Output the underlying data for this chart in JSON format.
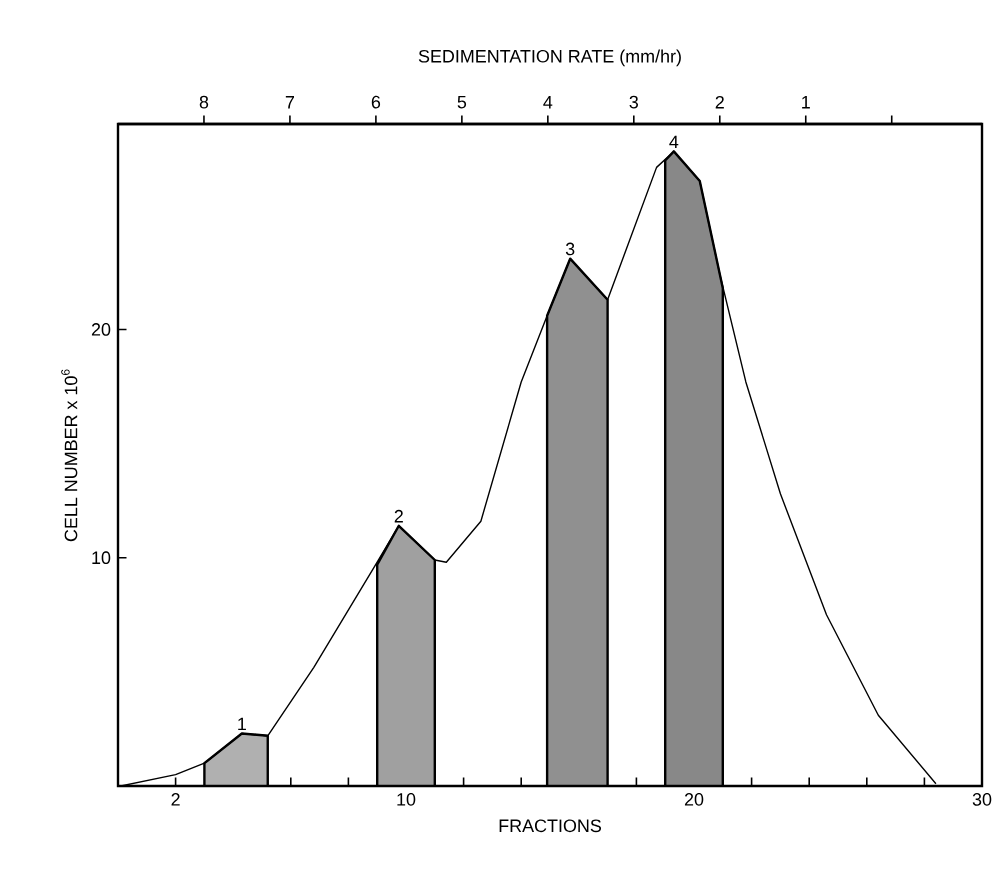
{
  "chart_data": {
    "type": "line",
    "xlabel": "FRACTIONS",
    "ylabel": "CELL NUMBER x 10$^{6}$",
    "x2label": "SEDIMENTATION RATE (mm/hr)",
    "xlim": [
      0,
      30
    ],
    "xticks": [
      2,
      {
        "value": 4,
        "label": null
      },
      {
        "value": 6,
        "label": null
      },
      {
        "value": 8,
        "label": null
      },
      10,
      {
        "value": 12,
        "label": null
      },
      {
        "value": 14,
        "label": null
      },
      {
        "value": 16,
        "label": null
      },
      {
        "value": 18,
        "label": null
      },
      20,
      {
        "value": 22,
        "label": null
      },
      {
        "value": 24,
        "label": null
      },
      {
        "value": 26,
        "label": null
      },
      {
        "value": 28,
        "label": null
      },
      30
    ],
    "x2lim": [
      9,
      -1.05
    ],
    "x2ticks": [
      8,
      7,
      6,
      5,
      4,
      3,
      2,
      1,
      {
        "value": 0,
        "label": null
      }
    ],
    "ylim": [
      0,
      29
    ],
    "yticks": [
      10,
      20
    ],
    "series": [
      {
        "type": "area",
        "color": "#b0b0b0",
        "x": [
          3.0,
          4.3,
          5.2
        ],
        "values": [
          1.0,
          2.3,
          2.2
        ]
      },
      {
        "type": "area",
        "color": "#a0a0a0",
        "x": [
          9.0,
          9.75,
          11.0
        ],
        "values": [
          9.7,
          11.4,
          9.9
        ]
      },
      {
        "type": "area",
        "color": "#909090",
        "x": [
          14.9,
          15.7,
          17.0
        ],
        "values": [
          20.6,
          23.1,
          21.3
        ]
      },
      {
        "type": "area",
        "color": "#888888",
        "x": [
          19.0,
          19.3,
          20.2,
          20.9,
          21.0
        ],
        "values": [
          27.4,
          27.8,
          26.5,
          22.4,
          21.8
        ]
      },
      {
        "color": "#000000",
        "x": [
          0.1,
          2,
          3,
          4.3,
          5.2,
          6.8,
          8.9,
          9.75,
          11,
          11.4,
          12.6,
          14,
          14.9,
          15.7,
          17,
          18.7,
          19.3,
          20.2,
          20.9,
          21.8,
          23,
          24.6,
          26.4,
          28.4
        ],
        "values": [
          0,
          0.5,
          1,
          2.3,
          2.2,
          5.2,
          9.6,
          11.4,
          9.9,
          9.8,
          11.6,
          17.7,
          20.6,
          23.1,
          21.3,
          27.1,
          27.8,
          26.5,
          22.4,
          17.7,
          12.8,
          7.5,
          3.1,
          0.1
        ]
      }
    ],
    "annotations": [
      {
        "text": "1",
        "x": 4.3,
        "y": 2.3
      },
      {
        "text": "2",
        "x": 9.75,
        "y": 11.4
      },
      {
        "text": "3",
        "x": 15.7,
        "y": 23.1
      },
      {
        "text": "4",
        "x": 19.3,
        "y": 27.8
      }
    ]
  }
}
